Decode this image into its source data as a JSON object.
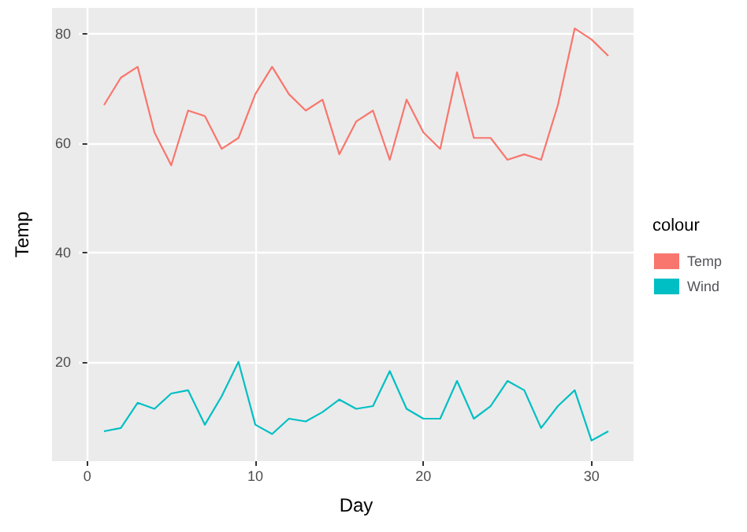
{
  "chart_data": {
    "type": "line",
    "xlabel": "Day",
    "ylabel": "Temp",
    "legend_title": "colour",
    "legend": "right",
    "grid": true,
    "marker": "none",
    "x": [
      1,
      2,
      3,
      4,
      5,
      6,
      7,
      8,
      9,
      10,
      11,
      12,
      13,
      14,
      15,
      16,
      17,
      18,
      19,
      20,
      21,
      22,
      23,
      24,
      25,
      26,
      27,
      28,
      29,
      30,
      31
    ],
    "xlim": [
      -0.5,
      32.5
    ],
    "xticks": [
      0,
      10,
      20,
      30
    ],
    "ylim": [
      1.935,
      84.765
    ],
    "yticks": [
      20,
      40,
      60,
      80
    ],
    "series": [
      {
        "name": "Temp",
        "color": "#f8766d",
        "values": [
          67,
          72,
          74,
          62,
          56,
          66,
          65,
          59,
          61,
          69,
          74,
          69,
          66,
          68,
          58,
          64,
          66,
          57,
          68,
          62,
          59,
          73,
          61,
          61,
          57,
          58,
          57,
          67,
          81,
          79,
          76
        ]
      },
      {
        "name": "Wind",
        "color": "#00bfc4",
        "values": [
          7.4,
          8.0,
          12.6,
          11.5,
          14.3,
          14.9,
          8.6,
          13.8,
          20.1,
          8.6,
          6.9,
          9.7,
          9.2,
          10.9,
          13.2,
          11.5,
          12.0,
          18.4,
          11.5,
          9.7,
          9.7,
          16.6,
          9.7,
          12.0,
          16.6,
          14.9,
          8.0,
          12.0,
          14.9,
          5.7,
          7.4
        ]
      }
    ]
  }
}
